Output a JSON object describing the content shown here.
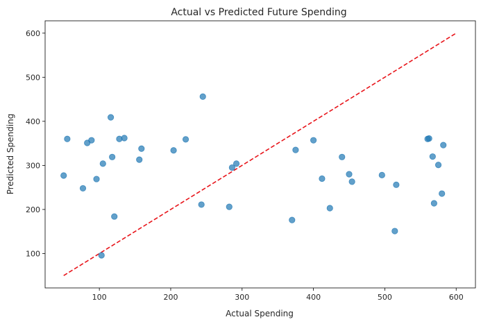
{
  "chart_data": {
    "type": "scatter",
    "title": "Actual vs Predicted Future Spending",
    "xlabel": "Actual Spending",
    "ylabel": "Predicted Spending",
    "xlim": [
      24,
      627
    ],
    "ylim": [
      22,
      628
    ],
    "xticks": [
      100,
      200,
      300,
      400,
      500,
      600
    ],
    "yticks": [
      100,
      200,
      300,
      400,
      500,
      600
    ],
    "grid": false,
    "colors": {
      "points": "#1f77b4",
      "reference_line": "#e8141a"
    },
    "reference_line": {
      "x": [
        50,
        600
      ],
      "y": [
        50,
        600
      ],
      "style": "dashed"
    },
    "points": [
      {
        "x": 50,
        "y": 277
      },
      {
        "x": 55,
        "y": 360
      },
      {
        "x": 77,
        "y": 248
      },
      {
        "x": 83,
        "y": 351
      },
      {
        "x": 89,
        "y": 357
      },
      {
        "x": 96,
        "y": 269
      },
      {
        "x": 103,
        "y": 96
      },
      {
        "x": 105,
        "y": 304
      },
      {
        "x": 116,
        "y": 409
      },
      {
        "x": 118,
        "y": 319
      },
      {
        "x": 121,
        "y": 184
      },
      {
        "x": 128,
        "y": 360
      },
      {
        "x": 135,
        "y": 362
      },
      {
        "x": 156,
        "y": 313
      },
      {
        "x": 159,
        "y": 338
      },
      {
        "x": 204,
        "y": 334
      },
      {
        "x": 221,
        "y": 359
      },
      {
        "x": 243,
        "y": 211
      },
      {
        "x": 245,
        "y": 456
      },
      {
        "x": 282,
        "y": 206
      },
      {
        "x": 286,
        "y": 295
      },
      {
        "x": 292,
        "y": 304
      },
      {
        "x": 370,
        "y": 176
      },
      {
        "x": 375,
        "y": 335
      },
      {
        "x": 400,
        "y": 357
      },
      {
        "x": 412,
        "y": 270
      },
      {
        "x": 423,
        "y": 203
      },
      {
        "x": 440,
        "y": 319
      },
      {
        "x": 450,
        "y": 280
      },
      {
        "x": 454,
        "y": 263
      },
      {
        "x": 496,
        "y": 278
      },
      {
        "x": 514,
        "y": 151
      },
      {
        "x": 516,
        "y": 256
      },
      {
        "x": 560,
        "y": 360
      },
      {
        "x": 562,
        "y": 361
      },
      {
        "x": 567,
        "y": 320
      },
      {
        "x": 569,
        "y": 214
      },
      {
        "x": 575,
        "y": 301
      },
      {
        "x": 580,
        "y": 236
      },
      {
        "x": 582,
        "y": 346
      }
    ]
  }
}
